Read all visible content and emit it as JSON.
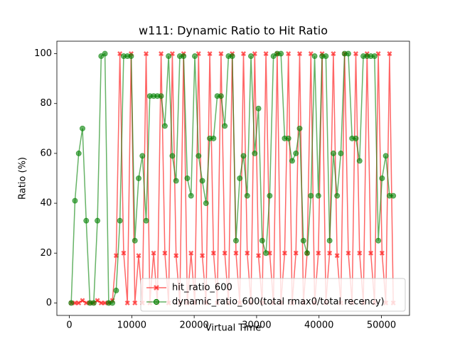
{
  "chart_data": {
    "type": "line",
    "title": "w111: Dynamic Ratio to Hit Ratio",
    "x_label": "Virtual Time",
    "y_label": "Ratio (%)",
    "x": [
      300,
      900,
      1500,
      2100,
      2700,
      3300,
      3900,
      4500,
      5100,
      5700,
      6300,
      6900,
      7500,
      8100,
      8700,
      9300,
      9900,
      10500,
      11100,
      11700,
      12300,
      12900,
      13500,
      14100,
      14700,
      15300,
      15900,
      16500,
      17100,
      17700,
      18300,
      18900,
      19500,
      20100,
      20700,
      21300,
      21900,
      22500,
      23100,
      23700,
      24300,
      24900,
      25500,
      26100,
      26700,
      27300,
      27900,
      28500,
      29100,
      29700,
      30300,
      30900,
      31500,
      32100,
      32700,
      33300,
      33900,
      34500,
      35100,
      35700,
      36300,
      36900,
      37500,
      38100,
      38700,
      39300,
      39900,
      40500,
      41100,
      41700,
      42300,
      42900,
      43500,
      44100,
      44700,
      45300,
      45900,
      46500,
      47100,
      47700,
      48300,
      48900,
      49500,
      50100,
      50700,
      51300,
      51900
    ],
    "series": [
      {
        "name": "hit_ratio_600",
        "color": "#ff0000",
        "alpha": 0.6,
        "marker": "X",
        "values": [
          0,
          0,
          0,
          1,
          0,
          0,
          0,
          1,
          0,
          0,
          0,
          1,
          19,
          100,
          20,
          0,
          100,
          0,
          19,
          0,
          100,
          0,
          20,
          0,
          100,
          20,
          0,
          100,
          19,
          0,
          100,
          0,
          20,
          0,
          100,
          19,
          0,
          100,
          20,
          0,
          100,
          20,
          0,
          100,
          20,
          0,
          100,
          20,
          0,
          100,
          19,
          0,
          100,
          20,
          0,
          100,
          0,
          20,
          100,
          0,
          20,
          100,
          0,
          20,
          100,
          0,
          20,
          100,
          0,
          20,
          100,
          19,
          0,
          100,
          20,
          0,
          100,
          20,
          0,
          100,
          20,
          0,
          100,
          20,
          0,
          100,
          0
        ]
      },
      {
        "name": "dynamic_ratio_600(total rmax0/total recency)",
        "color": "#008000",
        "alpha": 0.6,
        "marker": "o",
        "values": [
          0,
          41,
          60,
          70,
          33,
          0,
          0,
          33,
          99,
          100,
          0,
          0,
          5,
          33,
          99,
          99,
          99,
          25,
          50,
          59,
          33,
          83,
          83,
          83,
          83,
          71,
          99,
          59,
          49,
          99,
          99,
          50,
          43,
          99,
          59,
          49,
          40,
          66,
          66,
          83,
          83,
          71,
          99,
          99,
          25,
          50,
          59,
          43,
          99,
          60,
          78,
          25,
          20,
          43,
          99,
          100,
          100,
          66,
          66,
          57,
          60,
          70,
          25,
          20,
          43,
          99,
          43,
          99,
          99,
          25,
          60,
          43,
          60,
          100,
          100,
          66,
          66,
          57,
          99,
          99,
          99,
          99,
          25,
          50,
          59,
          43,
          43
        ]
      }
    ],
    "xlim": [
      -2000,
      54500
    ],
    "ylim": [
      -5,
      105
    ],
    "xticks": [
      0,
      10000,
      20000,
      30000,
      40000,
      50000
    ],
    "yticks": [
      0,
      20,
      40,
      60,
      80,
      100
    ],
    "legend": "lower right"
  }
}
